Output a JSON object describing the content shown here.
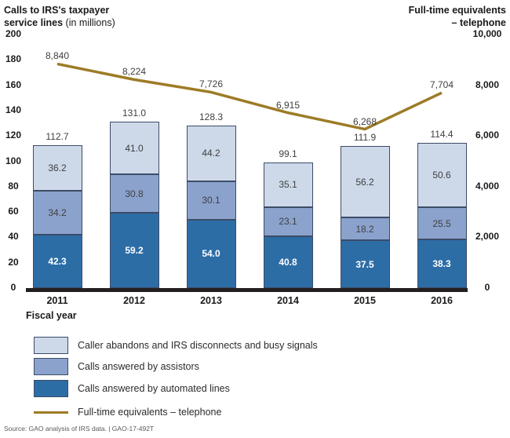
{
  "header": {
    "left_axis_title": {
      "line1": "Calls to IRS's taxpayer",
      "line2_bold": "service lines",
      "line2_rest": " (in millions)"
    },
    "right_axis_title": {
      "line1": "Full-time equivalents",
      "line2": "– telephone"
    }
  },
  "chart_data": {
    "type": "combo: stacked-bar + line",
    "categories": [
      "2011",
      "2012",
      "2013",
      "2014",
      "2015",
      "2016"
    ],
    "xlabel": "Fiscal year",
    "left_axis": {
      "title": "Calls to IRS's taxpayer service lines (in millions)",
      "ticks": [
        "200",
        "180",
        "160",
        "140",
        "120",
        "100",
        "80",
        "60",
        "40",
        "20",
        "0"
      ],
      "range": [
        0,
        200
      ],
      "grid": false
    },
    "right_axis": {
      "title": "Full-time equivalents – telephone",
      "ticks": [
        "10,000",
        "8,000",
        "6,000",
        "4,000",
        "2,000",
        "0"
      ],
      "range": [
        0,
        10000
      ],
      "grid": false
    },
    "bar_series": [
      {
        "name": "Calls answered by automated lines",
        "color": "#2d6da6",
        "label_style": "inverse",
        "values": [
          42.3,
          59.2,
          54.0,
          40.8,
          37.5,
          38.3
        ],
        "labels": [
          "42.3",
          "59.2",
          "54.0",
          "40.8",
          "37.5",
          "38.3"
        ]
      },
      {
        "name": "Calls answered by assistors",
        "color": "#8ba2cd",
        "label_style": "dark",
        "values": [
          34.2,
          30.8,
          30.1,
          23.1,
          18.2,
          25.5
        ],
        "labels": [
          "34.2",
          "30.8",
          "30.1",
          "23.1",
          "18.2",
          "25.5"
        ]
      },
      {
        "name": "Caller abandons and IRS disconnects and busy signals",
        "color": "#cdd9e9",
        "label_style": "dark",
        "values": [
          36.2,
          41.0,
          44.2,
          35.1,
          56.2,
          50.6
        ],
        "labels": [
          "36.2",
          "41.0",
          "44.2",
          "35.1",
          "56.2",
          "50.6"
        ]
      }
    ],
    "bar_totals": [
      "112.7",
      "131.0",
      "128.3",
      "99.1",
      "111.9",
      "114.4"
    ],
    "line_series": {
      "name": "Full-time equivalents – telephone",
      "color": "#9d7b26",
      "values": [
        8840,
        8224,
        7726,
        6915,
        6268,
        7704
      ],
      "labels": [
        "8,840",
        "8,224",
        "7,726",
        "6,915",
        "6,268",
        "7,704"
      ]
    },
    "bar_border_color": "#3c4c66",
    "baseline_color": "#231f20"
  },
  "legend": {
    "items": [
      {
        "type": "box",
        "color": "#cdd9e9",
        "label": "Caller abandons and IRS disconnects and busy signals"
      },
      {
        "type": "box",
        "color": "#8ba2cd",
        "label": "Calls answered by assistors"
      },
      {
        "type": "box",
        "color": "#2d6da6",
        "label": "Calls answered by automated lines"
      },
      {
        "type": "line",
        "color": "#9d7b26",
        "label": "Full-time equivalents – telephone"
      }
    ]
  },
  "footer": {
    "source": "Source: GAO analysis of IRS data. | GAO-17-492T"
  }
}
